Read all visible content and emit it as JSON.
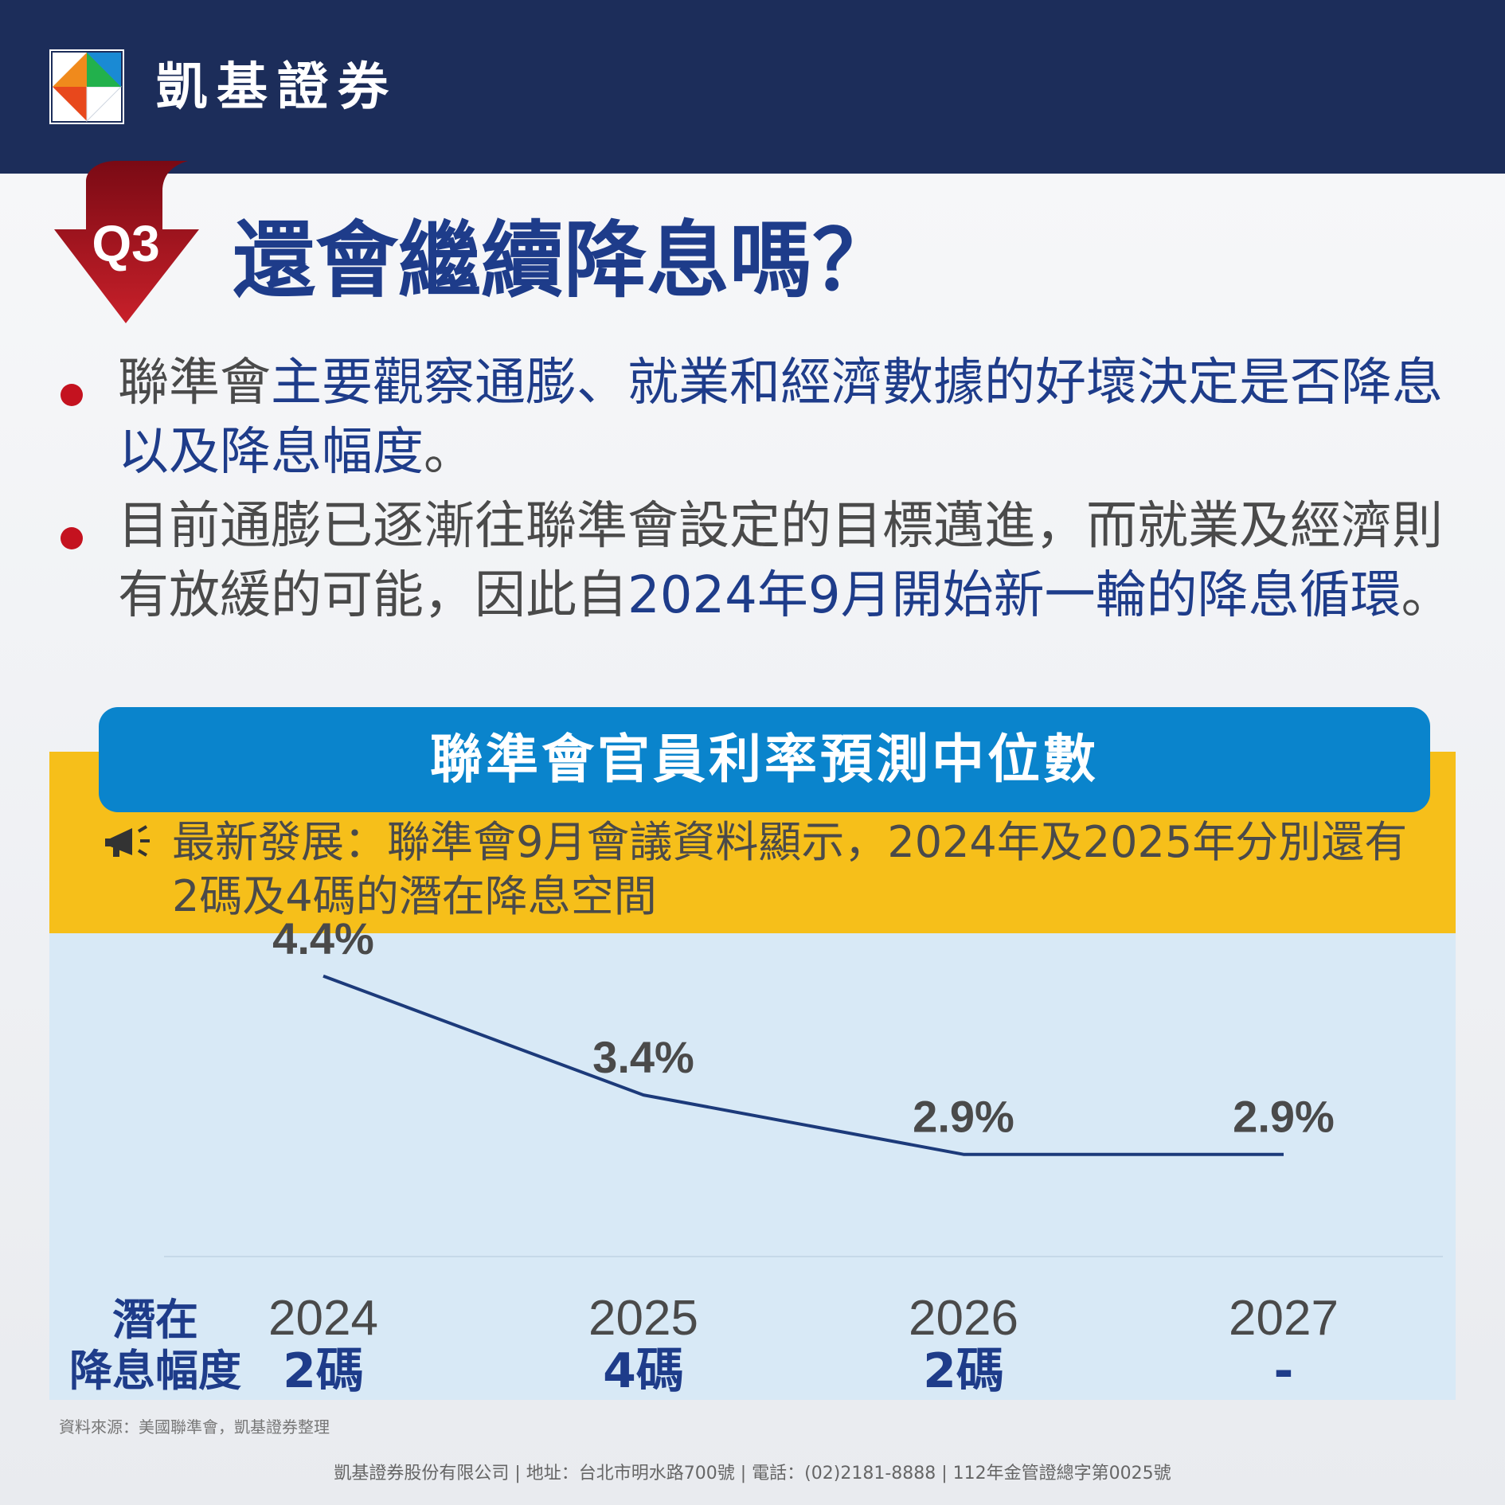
{
  "brand": {
    "name": "凱基證券"
  },
  "question": {
    "badge": "Q3",
    "title": "還會繼續降息嗎？"
  },
  "bullets": [
    {
      "segments": [
        {
          "text": "聯準會",
          "style": "normal"
        },
        {
          "text": "主要觀察通膨、就業和經濟數據的好壞決定是否降息以及降息幅度",
          "style": "hl"
        },
        {
          "text": "。",
          "style": "normal"
        }
      ]
    },
    {
      "segments": [
        {
          "text": "目前通膨已逐漸往聯準會設定的目標邁進，而就業及經濟則有放緩的可能，因此自",
          "style": "normal"
        },
        {
          "text": "2024年9月開始新一輪的降息循環",
          "style": "hl"
        },
        {
          "text": "。",
          "style": "normal"
        }
      ]
    }
  ],
  "chart_banner": {
    "title": "聯準會官員利率預測中位數"
  },
  "latest_note": {
    "text": "最新發展：聯準會9月會議資料顯示，2024年及2025年分別還有2碼及4碼的潛在降息空間"
  },
  "chart_data": {
    "type": "line",
    "title": "聯準會官員利率預測中位數",
    "categories": [
      "2024",
      "2025",
      "2026",
      "2027"
    ],
    "series": [
      {
        "values": [
          4.4,
          3.4,
          2.9,
          2.9
        ]
      }
    ],
    "data_labels": [
      "4.4%",
      "3.4%",
      "2.9%",
      "2.9%"
    ],
    "ylim": [
      2.0,
      4.6
    ],
    "color": "#1c3a7a",
    "grid": false,
    "potential_cut_label": "潛在降息幅度",
    "potential_cut_label_lines": [
      "潛在",
      "降息幅度"
    ],
    "potential_cuts": [
      "2碼",
      "4碼",
      "2碼",
      "-"
    ]
  },
  "source": "資料來源：美國聯準會，凱基證券整理",
  "footer": "凱基證券股份有限公司 | 地址：台北市明水路700號  |  電話：(02)2181-8888  |  112年金管證總字第0025號",
  "colors": {
    "navy": "#1c2d5a",
    "accent_blue": "#1e3c8a",
    "banner_blue": "#0a84cc",
    "yellow": "#f6bf1a",
    "red": "#c4121f",
    "panel": "#d8e9f6"
  }
}
